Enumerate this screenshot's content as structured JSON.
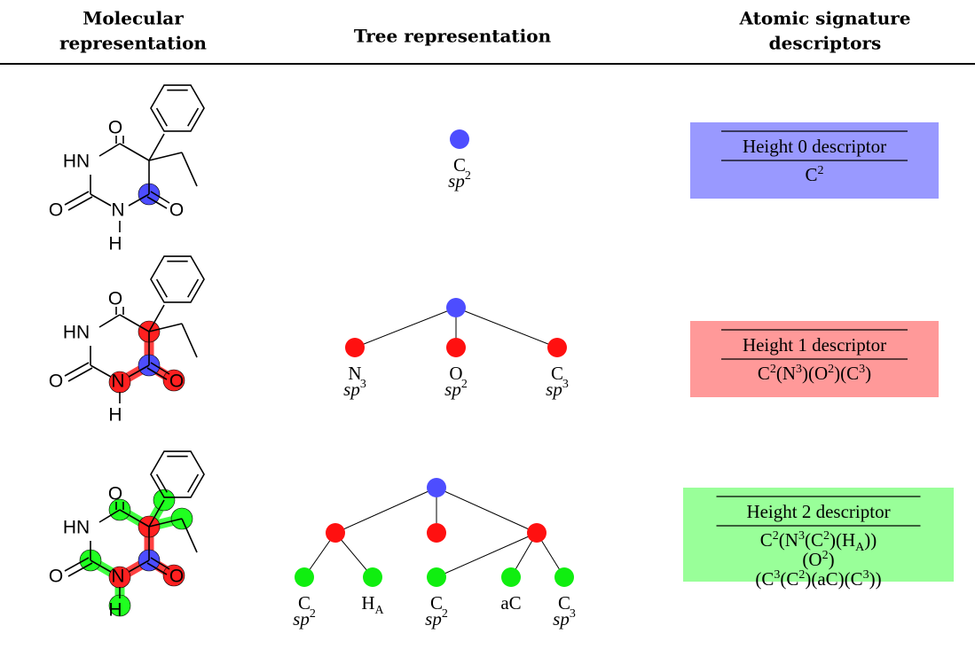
{
  "header": {
    "columns": [
      [
        "Molecular",
        "representation"
      ],
      [
        "Tree representation"
      ],
      [
        "Atomic signature",
        "descriptors"
      ]
    ]
  },
  "rows": [
    {
      "molecule": {
        "atoms": [
          "O",
          "HN",
          "O",
          "N",
          "O",
          "H"
        ]
      },
      "tree": {
        "nodes": [
          {
            "element": "C",
            "hybrid": "sp",
            "hybrid_sup": "2"
          }
        ]
      },
      "descriptor": {
        "title": "Height 0 descriptor",
        "lines": [
          [
            {
              "text": "C"
            },
            {
              "sup": "2"
            }
          ]
        ]
      }
    },
    {
      "molecule": {
        "atoms": [
          "O",
          "HN",
          "O",
          "N",
          "O",
          "H"
        ]
      },
      "tree": {
        "nodes": [
          {
            "element": "N",
            "hybrid": "sp",
            "hybrid_sup": "3"
          },
          {
            "element": "O",
            "hybrid": "sp",
            "hybrid_sup": "2"
          },
          {
            "element": "C",
            "hybrid": "sp",
            "hybrid_sup": "3"
          }
        ]
      },
      "descriptor": {
        "title": "Height 1 descriptor",
        "lines": [
          [
            {
              "text": "C"
            },
            {
              "sup": "2"
            },
            {
              "text": "(N"
            },
            {
              "sup": "3"
            },
            {
              "text": ")(O"
            },
            {
              "sup": "2"
            },
            {
              "text": ")(C"
            },
            {
              "sup": "3"
            },
            {
              "text": ")"
            }
          ]
        ]
      }
    },
    {
      "molecule": {
        "atoms": [
          "O",
          "HN",
          "O",
          "N",
          "O",
          "H"
        ]
      },
      "tree": {
        "nodes": [
          {
            "element": "C",
            "hybrid": "sp",
            "hybrid_sup": "2"
          },
          {
            "element": "H",
            "element_sub": "A"
          },
          {
            "element": "C",
            "hybrid": "sp",
            "hybrid_sup": "2"
          },
          {
            "element": "aC"
          },
          {
            "element": "C",
            "hybrid": "sp",
            "hybrid_sup": "3"
          }
        ]
      },
      "descriptor": {
        "title": "Height 2 descriptor",
        "lines": [
          [
            {
              "text": "C"
            },
            {
              "sup": "2"
            },
            {
              "text": "(N"
            },
            {
              "sup": "3"
            },
            {
              "text": "(C"
            },
            {
              "sup": "2"
            },
            {
              "text": ")(H"
            },
            {
              "sub": "A"
            },
            {
              "text": "))"
            }
          ],
          [
            {
              "text": "(O"
            },
            {
              "sup": "2"
            },
            {
              "text": ")"
            }
          ],
          [
            {
              "text": "(C"
            },
            {
              "sup": "3"
            },
            {
              "text": "(C"
            },
            {
              "sup": "2"
            },
            {
              "text": ")(aC)(C"
            },
            {
              "sup": "3"
            },
            {
              "text": "))"
            }
          ]
        ]
      }
    }
  ]
}
